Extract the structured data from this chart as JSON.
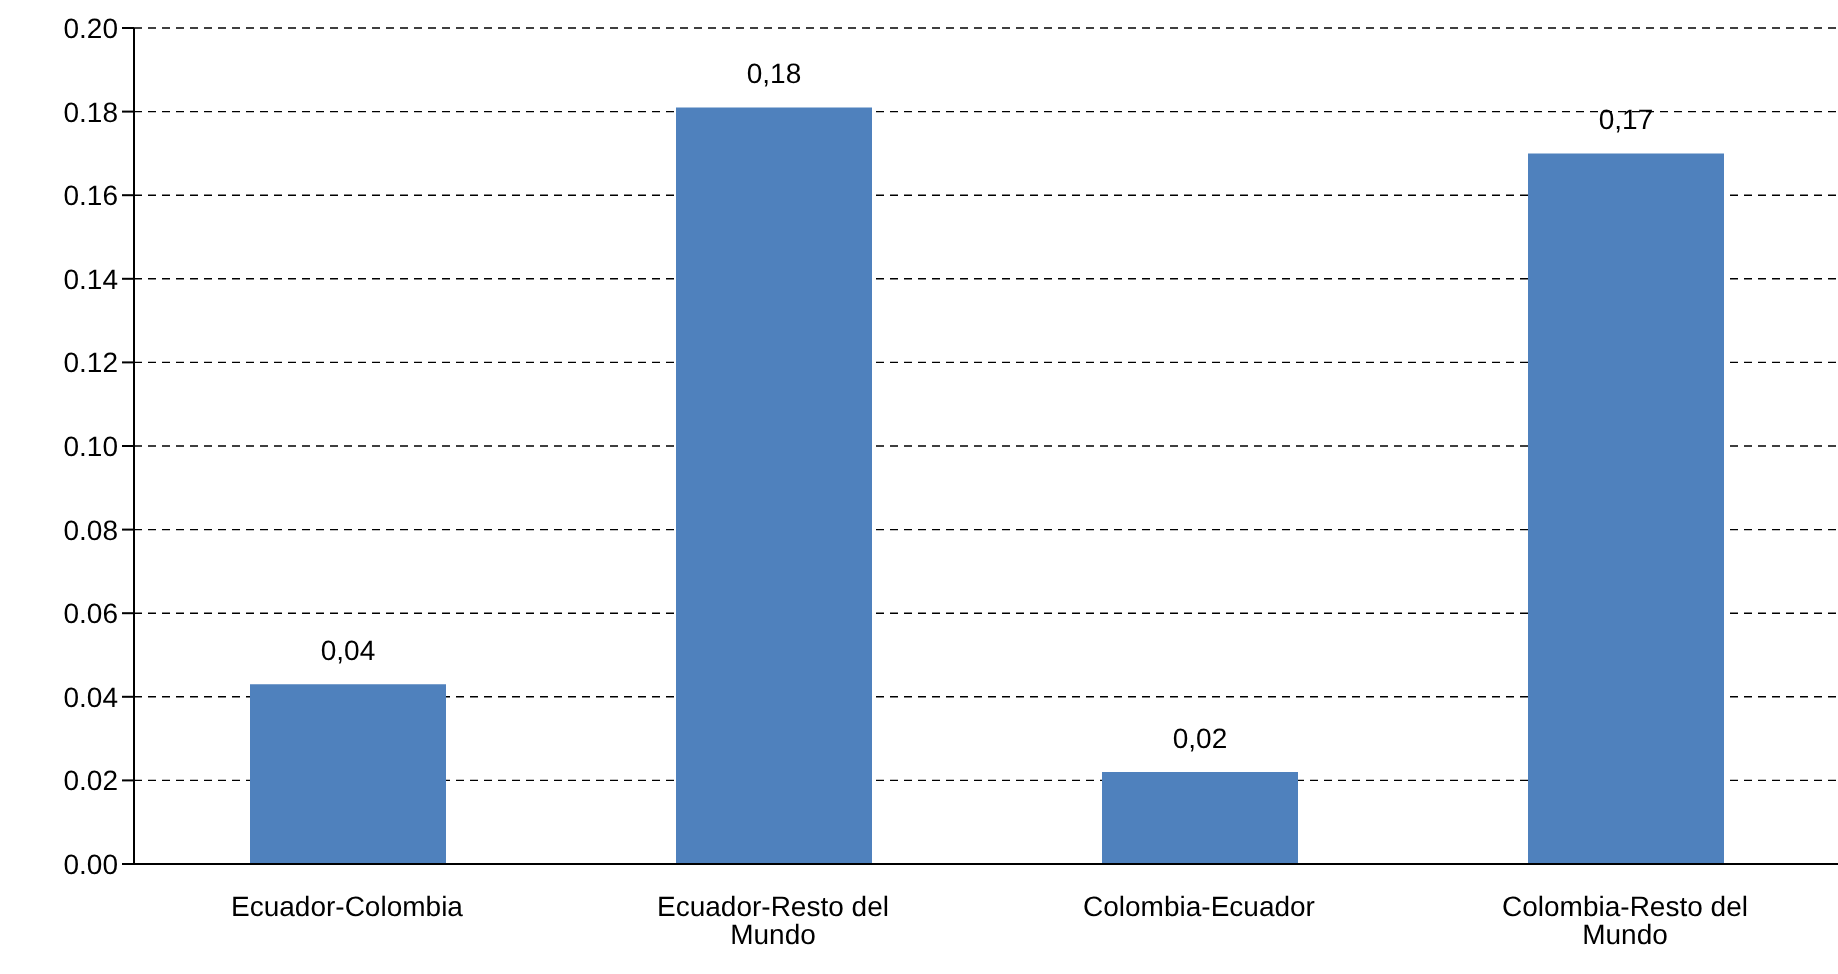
{
  "chart_data": {
    "type": "bar",
    "categories": [
      "Ecuador-Colombia",
      "Ecuador-Resto del Mundo",
      "Colombia-Ecuador",
      "Colombia-Resto del Mundo"
    ],
    "values": [
      0.043,
      0.181,
      0.022,
      0.17
    ],
    "value_labels": [
      "0,04",
      "0,18",
      "0,02",
      "0,17"
    ],
    "color": "#4f81bd",
    "ylim": [
      0,
      0.2
    ],
    "yticks": [
      {
        "value": 0,
        "label": "0.00"
      },
      {
        "value": 0.02,
        "label": "0.02"
      },
      {
        "value": 0.04,
        "label": "0.04"
      },
      {
        "value": 0.06,
        "label": "0.06"
      },
      {
        "value": 0.08,
        "label": "0.08"
      },
      {
        "value": 0.1,
        "label": "0.10"
      },
      {
        "value": 0.12,
        "label": "0.12"
      },
      {
        "value": 0.14,
        "label": "0.14"
      },
      {
        "value": 0.16,
        "label": "0.16"
      },
      {
        "value": 0.18,
        "label": "0.18"
      },
      {
        "value": 0.2,
        "label": "0.20"
      }
    ],
    "grid": "y"
  }
}
